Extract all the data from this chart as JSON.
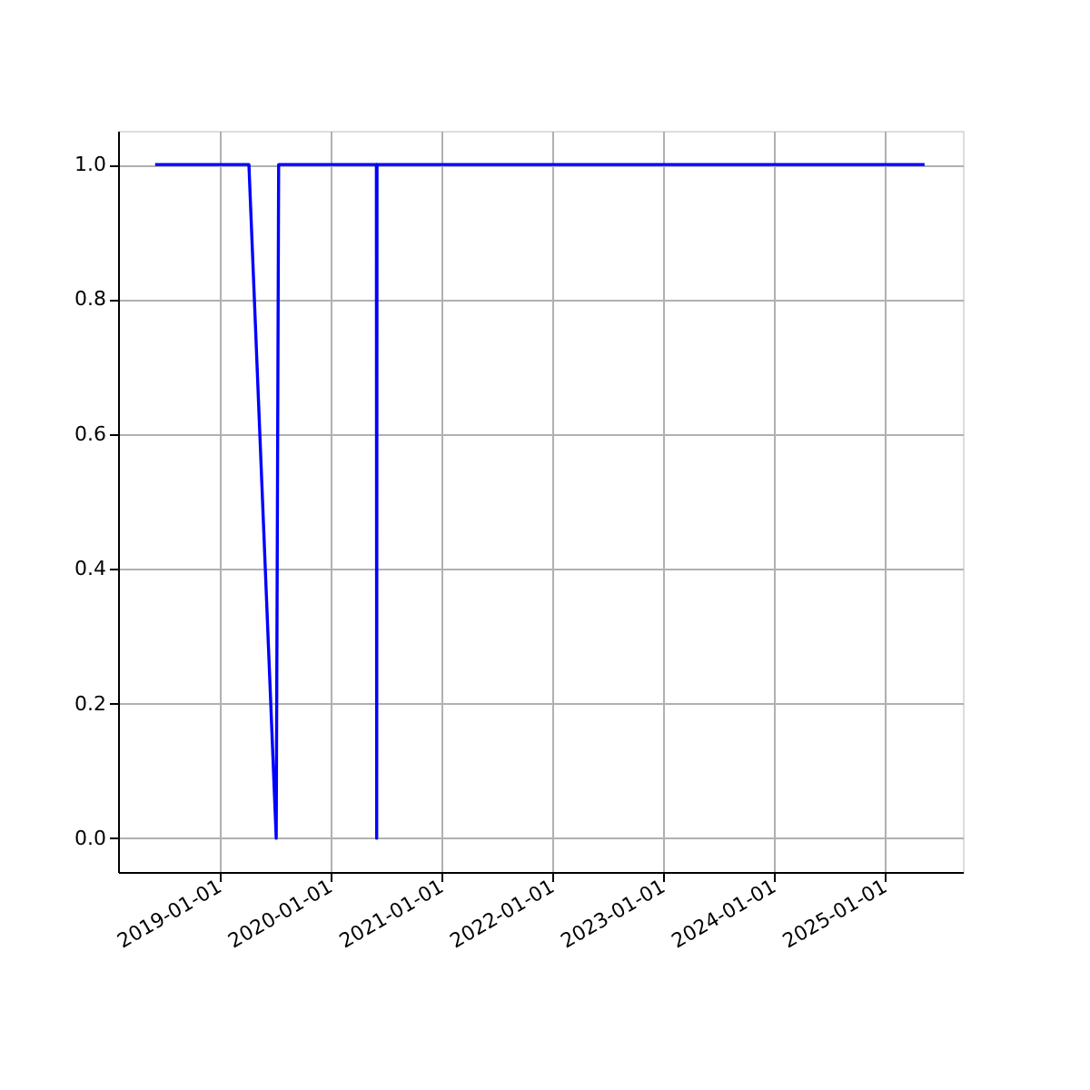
{
  "chart_data": {
    "type": "line",
    "x": [
      "2018-06-03",
      "2019-04-08",
      "2019-07-07",
      "2019-07-15",
      "2020-06-01",
      "2020-06-02",
      "2020-06-03",
      "2025-05-12"
    ],
    "series": [
      {
        "color": "#0000ff",
        "values": [
          1,
          1,
          0,
          1,
          1,
          0,
          1,
          1
        ]
      }
    ],
    "xlim": [
      "2018-02-01",
      "2025-09-15"
    ],
    "xticks": [
      "2019-01-01",
      "2020-01-01",
      "2021-01-01",
      "2022-01-01",
      "2023-01-01",
      "2024-01-01",
      "2025-01-01"
    ],
    "ylim": [
      -0.05,
      1.05
    ],
    "yticks": [
      {
        "value": 0,
        "label": "0.0"
      },
      {
        "value": 0.2,
        "label": "0.2"
      },
      {
        "value": 0.4,
        "label": "0.4"
      },
      {
        "value": 0.6,
        "label": "0.6"
      },
      {
        "value": 0.8,
        "label": "0.8"
      },
      {
        "value": 1,
        "label": "1.0"
      }
    ],
    "grid": true,
    "marker": "none",
    "line_style": "solid"
  }
}
